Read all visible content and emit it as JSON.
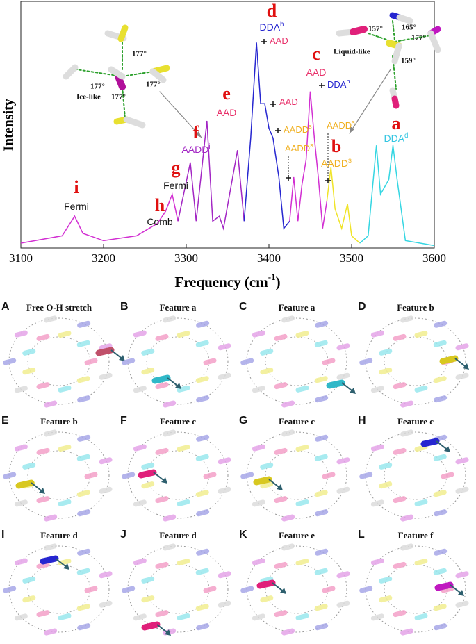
{
  "chart_data": {
    "type": "line",
    "xlabel": "Frequency (cm",
    "xlabel_sup": "-1",
    "xlabel_end": ")",
    "ylabel": "Intensity",
    "xlim": [
      3100,
      3600
    ],
    "xticks": [
      3100,
      3200,
      3300,
      3400,
      3500,
      3600
    ],
    "ylim": [
      0,
      1
    ],
    "series": [
      {
        "color": "#d22fd2",
        "x": [
          3100,
          3150,
          3165,
          3175,
          3200,
          3240,
          3255,
          3265,
          3275,
          3283,
          3290
        ],
        "values": [
          0.02,
          0.05,
          0.13,
          0.06,
          0.03,
          0.05,
          0.08,
          0.1,
          0.15,
          0.22,
          0.11
        ]
      },
      {
        "color": "#a326c4",
        "x": [
          3290,
          3305,
          3312,
          3325,
          3332,
          3340,
          3345,
          3362,
          3370
        ],
        "values": [
          0.11,
          0.35,
          0.11,
          0.52,
          0.11,
          0.13,
          0.08,
          0.4,
          0.11
        ]
      },
      {
        "color": "#2626d0",
        "x": [
          3370,
          3378,
          3385,
          3390,
          3395,
          3400,
          3405,
          3412,
          3418,
          3425
        ],
        "values": [
          0.11,
          0.45,
          0.84,
          0.59,
          0.59,
          0.49,
          0.45,
          0.29,
          0.08,
          0.11
        ]
      },
      {
        "color": "#d22fd2",
        "x": [
          3425,
          3430,
          3435,
          3440,
          3445,
          3450,
          3455,
          3460,
          3465,
          3470
        ],
        "values": [
          0.11,
          0.29,
          0.11,
          0.26,
          0.36,
          0.64,
          0.45,
          0.28,
          0.08,
          0.19
        ]
      },
      {
        "color": "#f0e428",
        "x": [
          3470,
          3475,
          3480,
          3488,
          3495,
          3500,
          3510
        ],
        "values": [
          0.19,
          0.33,
          0.16,
          0.08,
          0.18,
          0.05,
          0.02
        ]
      },
      {
        "color": "#35d6e2",
        "x": [
          3510,
          3520,
          3530,
          3535,
          3540,
          3545,
          3550,
          3555,
          3565,
          3600
        ],
        "values": [
          0.02,
          0.05,
          0.42,
          0.22,
          0.25,
          0.28,
          0.42,
          0.28,
          0.03,
          0.01
        ]
      }
    ],
    "annotations": [
      {
        "letter": "i",
        "label": "Fermi",
        "color": "#111111"
      },
      {
        "letter": "h",
        "label": "Comb",
        "color": "#111111"
      },
      {
        "letter": "g",
        "label": "Fermi",
        "color": "#111111"
      },
      {
        "letter": "f",
        "label": "AADD",
        "sup": "i",
        "color": "#a326c4"
      },
      {
        "letter": "e",
        "label": "AAD",
        "color": "#e8306a"
      },
      {
        "letter": "d",
        "label": "DDA",
        "sup": "h",
        "color": "#2626d0"
      },
      {
        "letter": "c",
        "label": "AAD",
        "color": "#e8306a"
      },
      {
        "letter": "b",
        "label": "AADD",
        "sup": "s",
        "color": "#f0b020"
      },
      {
        "letter": "a",
        "label": "DDA",
        "sup": "d",
        "color": "#35c6e2"
      }
    ],
    "markers": [
      {
        "label": "AAD",
        "color": "#e8306a"
      },
      {
        "label": "AAD",
        "color": "#e8306a"
      },
      {
        "label": "AADD",
        "sup": "s",
        "color": "#f0b020"
      },
      {
        "label": "AADD",
        "sup": "s",
        "color": "#f0b020"
      },
      {
        "label": "DDA",
        "sup": "h",
        "color": "#2626d0"
      },
      {
        "label": "AADD",
        "sup": "s",
        "color": "#f0b020"
      }
    ],
    "insets": {
      "ice": {
        "label": "Ice-like",
        "angles": [
          "177°",
          "177°",
          "177°",
          "177°"
        ]
      },
      "liquid": {
        "label": "Liquid-like",
        "angles": [
          "157°",
          "165°",
          "177°",
          "159°"
        ]
      }
    }
  },
  "panels": [
    {
      "letter": "A",
      "title": "Free O-H stretch"
    },
    {
      "letter": "B",
      "title": "Feature a"
    },
    {
      "letter": "C",
      "title": "Feature a"
    },
    {
      "letter": "D",
      "title": "Feature b"
    },
    {
      "letter": "E",
      "title": "Feature b"
    },
    {
      "letter": "F",
      "title": "Feature c"
    },
    {
      "letter": "G",
      "title": "Feature c"
    },
    {
      "letter": "H",
      "title": "Feature c"
    },
    {
      "letter": "I",
      "title": "Feature d"
    },
    {
      "letter": "J",
      "title": "Feature d"
    },
    {
      "letter": "K",
      "title": "Feature e"
    },
    {
      "letter": "L",
      "title": "Feature f"
    }
  ]
}
